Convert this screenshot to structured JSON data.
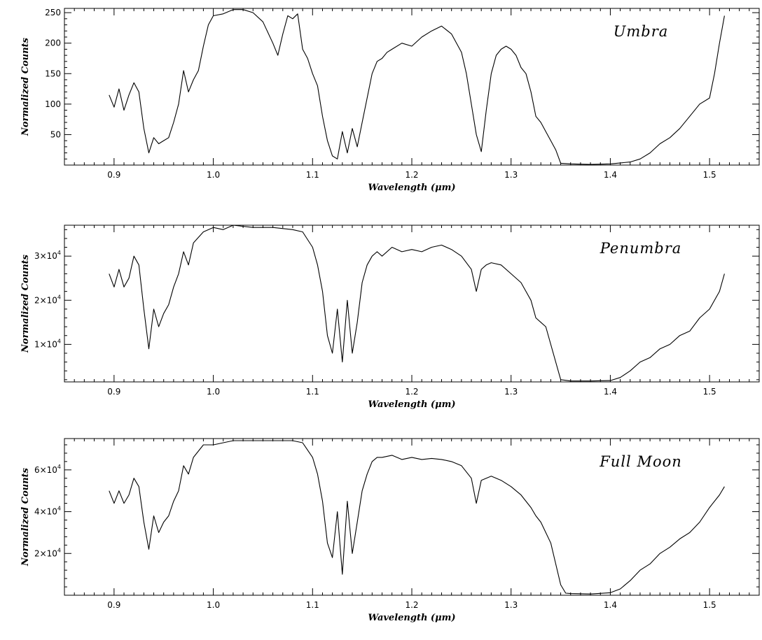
{
  "chart_data": [
    {
      "type": "line",
      "title": "",
      "annotation": "Umbra",
      "xlabel": "Wavelength (μm)",
      "ylabel": "Normalized Counts",
      "xlim": [
        0.85,
        1.55
      ],
      "ylim": [
        0,
        257
      ],
      "xticks": [
        0.9,
        1.0,
        1.1,
        1.2,
        1.3,
        1.4,
        1.5
      ],
      "xtick_labels": [
        "0.9",
        "1.0",
        "1.1",
        "1.2",
        "1.3",
        "1.4",
        "1.5"
      ],
      "yticks": [
        50,
        100,
        150,
        200,
        250
      ],
      "ytick_labels": [
        "50",
        "100",
        "150",
        "200",
        "250"
      ],
      "series": [
        {
          "x": [
            0.895,
            0.9,
            0.905,
            0.91,
            0.915,
            0.92,
            0.925,
            0.93,
            0.935,
            0.94,
            0.945,
            0.95,
            0.955,
            0.96,
            0.965,
            0.97,
            0.975,
            0.98,
            0.985,
            0.99,
            0.995,
            1.0,
            1.01,
            1.02,
            1.03,
            1.04,
            1.05,
            1.06,
            1.065,
            1.07,
            1.075,
            1.08,
            1.085,
            1.09,
            1.095,
            1.1,
            1.105,
            1.11,
            1.115,
            1.12,
            1.125,
            1.13,
            1.135,
            1.14,
            1.145,
            1.15,
            1.155,
            1.16,
            1.165,
            1.17,
            1.175,
            1.18,
            1.19,
            1.2,
            1.21,
            1.22,
            1.23,
            1.24,
            1.25,
            1.255,
            1.26,
            1.265,
            1.27,
            1.275,
            1.28,
            1.285,
            1.29,
            1.295,
            1.3,
            1.305,
            1.31,
            1.315,
            1.32,
            1.325,
            1.33,
            1.335,
            1.34,
            1.345,
            1.35,
            1.36,
            1.38,
            1.4,
            1.42,
            1.43,
            1.44,
            1.45,
            1.46,
            1.47,
            1.48,
            1.49,
            1.5,
            1.505,
            1.51,
            1.515
          ],
          "y": [
            115,
            95,
            125,
            90,
            115,
            135,
            120,
            60,
            20,
            45,
            35,
            40,
            45,
            70,
            100,
            155,
            120,
            140,
            155,
            195,
            230,
            245,
            248,
            255,
            255,
            250,
            235,
            200,
            180,
            215,
            245,
            240,
            248,
            190,
            175,
            150,
            130,
            80,
            40,
            15,
            10,
            55,
            20,
            60,
            30,
            70,
            110,
            150,
            170,
            175,
            185,
            190,
            200,
            195,
            210,
            220,
            228,
            215,
            185,
            150,
            100,
            50,
            22,
            90,
            150,
            180,
            190,
            195,
            190,
            180,
            160,
            150,
            120,
            80,
            70,
            55,
            40,
            25,
            3,
            2,
            1,
            2,
            5,
            10,
            20,
            35,
            45,
            60,
            80,
            100,
            110,
            150,
            200,
            245
          ]
        }
      ]
    },
    {
      "type": "line",
      "title": "",
      "annotation": "Penumbra",
      "xlabel": "Wavelength (μm)",
      "ylabel": "Normalized Counts",
      "xlim": [
        0.85,
        1.55
      ],
      "ylim": [
        1500,
        37000
      ],
      "xticks": [
        0.9,
        1.0,
        1.1,
        1.2,
        1.3,
        1.4,
        1.5
      ],
      "xtick_labels": [
        "0.9",
        "1.0",
        "1.1",
        "1.2",
        "1.3",
        "1.4",
        "1.5"
      ],
      "yticks": [
        10000,
        20000,
        30000
      ],
      "ytick_labels": [
        "1×10",
        "2×10",
        "3×10"
      ],
      "ytick_exponent": "4",
      "series": [
        {
          "x": [
            0.895,
            0.9,
            0.905,
            0.91,
            0.915,
            0.92,
            0.925,
            0.93,
            0.935,
            0.94,
            0.945,
            0.95,
            0.955,
            0.96,
            0.965,
            0.97,
            0.975,
            0.98,
            0.99,
            1.0,
            1.01,
            1.02,
            1.04,
            1.06,
            1.08,
            1.09,
            1.1,
            1.105,
            1.11,
            1.115,
            1.12,
            1.125,
            1.13,
            1.135,
            1.14,
            1.145,
            1.15,
            1.155,
            1.16,
            1.165,
            1.17,
            1.18,
            1.19,
            1.2,
            1.21,
            1.22,
            1.23,
            1.24,
            1.25,
            1.26,
            1.265,
            1.27,
            1.275,
            1.28,
            1.29,
            1.3,
            1.31,
            1.315,
            1.32,
            1.325,
            1.33,
            1.335,
            1.34,
            1.345,
            1.35,
            1.36,
            1.38,
            1.4,
            1.41,
            1.42,
            1.43,
            1.44,
            1.45,
            1.46,
            1.47,
            1.48,
            1.49,
            1.5,
            1.51,
            1.515
          ],
          "y": [
            26000,
            23000,
            27000,
            23000,
            25000,
            30000,
            28000,
            18000,
            9000,
            18000,
            14000,
            17000,
            19000,
            23000,
            26000,
            31000,
            28000,
            33000,
            35500,
            36500,
            36000,
            37000,
            36500,
            36500,
            36000,
            35500,
            32000,
            28000,
            22000,
            12000,
            8000,
            18000,
            6000,
            20000,
            8000,
            15000,
            24000,
            28000,
            30000,
            31000,
            30000,
            32000,
            31000,
            31500,
            31000,
            32000,
            32500,
            31500,
            30000,
            27000,
            22000,
            27000,
            28000,
            28500,
            28000,
            26000,
            24000,
            22000,
            20000,
            16000,
            15000,
            14000,
            10000,
            6000,
            2000,
            1700,
            1700,
            1800,
            2500,
            4000,
            6000,
            7000,
            9000,
            10000,
            12000,
            13000,
            16000,
            18000,
            22000,
            26000
          ]
        }
      ]
    },
    {
      "type": "line",
      "title": "",
      "annotation": "Full Moon",
      "xlabel": "Wavelength (μm)",
      "ylabel": "Normalized Counts",
      "xlim": [
        0.85,
        1.55
      ],
      "ylim": [
        0,
        75000
      ],
      "xticks": [
        0.9,
        1.0,
        1.1,
        1.2,
        1.3,
        1.4,
        1.5
      ],
      "xtick_labels": [
        "0.9",
        "1.0",
        "1.1",
        "1.2",
        "1.3",
        "1.4",
        "1.5"
      ],
      "yticks": [
        20000,
        40000,
        60000
      ],
      "ytick_labels": [
        "2×10",
        "4×10",
        "6×10"
      ],
      "ytick_exponent": "4",
      "series": [
        {
          "x": [
            0.895,
            0.9,
            0.905,
            0.91,
            0.915,
            0.92,
            0.925,
            0.93,
            0.935,
            0.94,
            0.945,
            0.95,
            0.955,
            0.96,
            0.965,
            0.97,
            0.975,
            0.98,
            0.99,
            1.0,
            1.01,
            1.02,
            1.04,
            1.06,
            1.08,
            1.09,
            1.1,
            1.105,
            1.11,
            1.115,
            1.12,
            1.125,
            1.13,
            1.135,
            1.14,
            1.145,
            1.15,
            1.155,
            1.16,
            1.165,
            1.17,
            1.18,
            1.19,
            1.2,
            1.21,
            1.22,
            1.23,
            1.24,
            1.25,
            1.26,
            1.265,
            1.27,
            1.275,
            1.28,
            1.29,
            1.3,
            1.31,
            1.315,
            1.32,
            1.325,
            1.33,
            1.335,
            1.34,
            1.345,
            1.35,
            1.355,
            1.36,
            1.38,
            1.4,
            1.41,
            1.42,
            1.43,
            1.44,
            1.45,
            1.46,
            1.47,
            1.48,
            1.49,
            1.5,
            1.51,
            1.515
          ],
          "y": [
            50000,
            44000,
            50000,
            44000,
            48000,
            56000,
            52000,
            35000,
            22000,
            38000,
            30000,
            35000,
            38000,
            45000,
            50000,
            62000,
            58000,
            66000,
            72000,
            72000,
            73000,
            74000,
            74000,
            74000,
            74000,
            73000,
            66000,
            58000,
            45000,
            25000,
            18000,
            40000,
            10000,
            45000,
            20000,
            35000,
            50000,
            58000,
            64000,
            66000,
            66000,
            67000,
            65000,
            66000,
            65000,
            65500,
            65000,
            64000,
            62000,
            56000,
            44000,
            55000,
            56000,
            57000,
            55000,
            52000,
            48000,
            45000,
            42000,
            38000,
            35000,
            30000,
            25000,
            15000,
            5000,
            1000,
            800,
            600,
            1200,
            3000,
            7000,
            12000,
            15000,
            20000,
            23000,
            27000,
            30000,
            35000,
            42000,
            48000,
            52000
          ]
        }
      ]
    }
  ]
}
